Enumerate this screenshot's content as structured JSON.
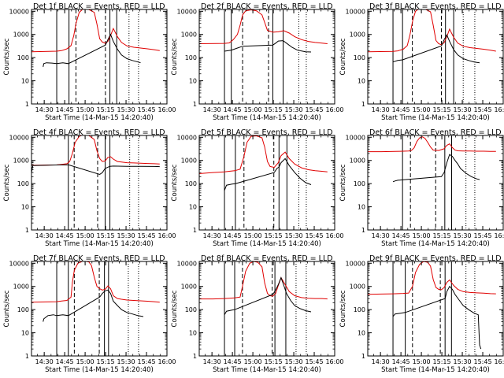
{
  "chart_data": {
    "type": "line",
    "layout": "3x3 grid",
    "y_scale": "log",
    "ylim": [
      1,
      12000
    ],
    "y_ticks": [
      1,
      10,
      100,
      1000,
      10000
    ],
    "y_tick_labels": [
      "1",
      "10",
      "100",
      "1000",
      "10000"
    ],
    "ylabel": "Counts/sec",
    "xlabel": "Start Time (14-Mar-15 14:20:40)",
    "x_units": "minutes after 14:20:40",
    "xlim": [
      0,
      99.33
    ],
    "x_ticks": [
      9.33,
      24.33,
      39.33,
      54.33,
      69.33,
      84.33,
      99.33
    ],
    "x_tick_labels": [
      "14:30",
      "14:45",
      "15:00",
      "15:15",
      "15:30",
      "15:45",
      "16:00"
    ],
    "series_names": [
      "BLACK = Events",
      "RED = LLD"
    ],
    "series_colors": {
      "events": "#000000",
      "lld": "#e00000"
    },
    "panels": [
      {
        "title": "Det 1f BLACK = Events, RED = LLD",
        "solid_lines": [
          18.5,
          27.5,
          57.5,
          62.5
        ],
        "dashed_lines": [
          32.6,
          54.2
        ],
        "dotted_lines": [
          71.5,
          78.5
        ],
        "lld": {
          "x": [
            0,
            18.5,
            22,
            26,
            29,
            31,
            32.6,
            35,
            38,
            42,
            46,
            48,
            50,
            52,
            54,
            56,
            58,
            60,
            63,
            66,
            70,
            75,
            80,
            85,
            90,
            94
          ],
          "y": [
            180,
            190,
            200,
            240,
            330,
            900,
            3000,
            9000,
            13000,
            12000,
            9000,
            2800,
            650,
            470,
            420,
            500,
            900,
            1800,
            800,
            450,
            320,
            280,
            260,
            240,
            220,
            200
          ]
        },
        "events": {
          "x": [
            8.5,
            9,
            11,
            15,
            18.5,
            23,
            27,
            54.2,
            56,
            58,
            60,
            63,
            66,
            70,
            74,
            78,
            80
          ],
          "y": [
            40,
            55,
            60,
            58,
            55,
            60,
            55,
            350,
            600,
            1000,
            500,
            230,
            130,
            90,
            75,
            65,
            60
          ]
        }
      },
      {
        "title": "Det 2f BLACK = Events, RED = LLD",
        "solid_lines": [
          18.5,
          23.5,
          54,
          61.5
        ],
        "dashed_lines": [
          31.8,
          50.8
        ],
        "dotted_lines": [
          73,
          78.5
        ],
        "lld": {
          "x": [
            0,
            18.5,
            22,
            25,
            28,
            30,
            31.8,
            34,
            38,
            42,
            46,
            48,
            50,
            54,
            58,
            62,
            66,
            70,
            75,
            80,
            85,
            90,
            94
          ],
          "y": [
            400,
            410,
            430,
            600,
            1000,
            2500,
            7000,
            10500,
            11500,
            10500,
            7000,
            3300,
            1500,
            1250,
            1300,
            1450,
            1150,
            800,
            600,
            500,
            450,
            420,
            400
          ]
        },
        "events": {
          "x": [
            18.5,
            23.5,
            28,
            31.8,
            54,
            56,
            58,
            61.5,
            64,
            68,
            72,
            78,
            82
          ],
          "y": [
            190,
            210,
            260,
            310,
            350,
            420,
            520,
            540,
            420,
            280,
            210,
            180,
            175
          ]
        }
      },
      {
        "title": "Det 3f BLACK = Events, RED = LLD",
        "solid_lines": [
          18.5,
          25.5,
          57,
          63
        ],
        "dashed_lines": [
          32.7,
          54
        ],
        "dotted_lines": [
          70,
          78.5
        ],
        "lld": {
          "x": [
            0,
            18.5,
            22,
            26,
            29,
            31,
            33,
            35,
            38,
            42,
            46,
            48,
            50,
            52,
            54,
            56,
            58,
            60,
            63,
            66,
            70,
            75,
            80,
            85,
            90,
            94
          ],
          "y": [
            180,
            185,
            195,
            230,
            330,
            1000,
            4000,
            10000,
            13500,
            12500,
            9500,
            2500,
            550,
            400,
            360,
            440,
            800,
            1700,
            750,
            420,
            310,
            270,
            250,
            230,
            210,
            190
          ]
        },
        "events": {
          "x": [
            18.5,
            22,
            25.5,
            54,
            56,
            58,
            60,
            63,
            66,
            70,
            74,
            78,
            82
          ],
          "y": [
            65,
            75,
            80,
            320,
            600,
            950,
            500,
            220,
            130,
            90,
            75,
            65,
            60
          ]
        }
      },
      {
        "title": "Det 4f BLACK = Events, RED = LLD",
        "solid_lines": [
          27,
          54,
          57.5
        ],
        "dashed_lines": [
          31.3,
          48.5
        ],
        "dotted_lines": [
          72,
          78.5
        ],
        "lld": {
          "x": [
            0,
            18.5,
            22,
            26,
            28,
            30,
            32,
            35,
            38,
            42,
            46,
            48,
            50,
            52,
            54,
            56,
            58,
            60,
            63,
            66,
            70,
            75,
            80,
            85,
            90,
            94
          ],
          "y": [
            620,
            640,
            680,
            720,
            900,
            2000,
            6000,
            11000,
            13000,
            12000,
            8000,
            2600,
            1200,
            900,
            950,
            1350,
            1450,
            1150,
            900,
            850,
            800,
            780,
            760,
            740,
            720,
            700
          ]
        },
        "events": {
          "x": [
            0,
            1,
            10,
            20,
            27,
            50,
            52,
            54,
            57.5,
            60,
            70,
            80,
            90,
            94
          ],
          "y": [
            300,
            600,
            620,
            640,
            650,
            250,
            300,
            450,
            560,
            570,
            560,
            560,
            550,
            540
          ]
        }
      },
      {
        "title": "Det 5f BLACK = Events, RED = LLD",
        "solid_lines": [
          18.5,
          26.5,
          58.5,
          64.3
        ],
        "dashed_lines": [
          32.8,
          54.7
        ],
        "dotted_lines": [
          73,
          78.5
        ],
        "lld": {
          "x": [
            0,
            10,
            18.5,
            22,
            26,
            30,
            32.8,
            35,
            38,
            42,
            46,
            48,
            50,
            52,
            55,
            58,
            60,
            63,
            66,
            70,
            75,
            80,
            85,
            90,
            94
          ],
          "y": [
            270,
            300,
            320,
            340,
            360,
            420,
            1500,
            6000,
            11000,
            11500,
            9500,
            3800,
            900,
            550,
            500,
            800,
            1600,
            2300,
            1200,
            700,
            480,
            400,
            360,
            340,
            320
          ]
        },
        "events": {
          "x": [
            18.5,
            20,
            24,
            26.5,
            55,
            57,
            58.5,
            60,
            63,
            66,
            70,
            74,
            78,
            82
          ],
          "y": [
            50,
            85,
            95,
            100,
            300,
            450,
            520,
            800,
            1200,
            600,
            300,
            170,
            110,
            90
          ]
        }
      },
      {
        "title": "Det 6f BLACK = Events, RED = LLD",
        "solid_lines": [
          25.5,
          56.5,
          61.5
        ],
        "dashed_lines": [
          31.3,
          49.8
        ],
        "dotted_lines": [
          72,
          78.5
        ],
        "lld": {
          "x": [
            0,
            10,
            20,
            26,
            30,
            32,
            34,
            36,
            38,
            40,
            42,
            44,
            46,
            48,
            52,
            56,
            58,
            60,
            62,
            64,
            66,
            70,
            75,
            80,
            85,
            90,
            94
          ],
          "y": [
            2400,
            2400,
            2450,
            2500,
            2550,
            2700,
            3500,
            6500,
            9500,
            10500,
            9000,
            6000,
            3800,
            2800,
            2700,
            3200,
            4500,
            5200,
            3600,
            2800,
            2600,
            2550,
            2550,
            2500,
            2500,
            2450,
            2450
          ]
        },
        "events": {
          "x": [
            18.5,
            20,
            22,
            25.5,
            54,
            56,
            58,
            60,
            62,
            64,
            66,
            68,
            72,
            76,
            80,
            82
          ],
          "y": [
            120,
            130,
            140,
            145,
            200,
            300,
            800,
            1800,
            1500,
            1000,
            700,
            450,
            280,
            200,
            160,
            150
          ]
        }
      },
      {
        "title": "Det 7f BLACK = Events, RED = LLD",
        "solid_lines": [
          18.5,
          27,
          53.5,
          56.5
        ],
        "dashed_lines": [
          31.4,
          49.7
        ],
        "dotted_lines": [
          71,
          78.5
        ],
        "lld": {
          "x": [
            0,
            10,
            18.5,
            22,
            26,
            29,
            30,
            31.4,
            34,
            38,
            42,
            44,
            46,
            48,
            50,
            52,
            54,
            56,
            58,
            60,
            63,
            66,
            70,
            75,
            80,
            85,
            90,
            94
          ],
          "y": [
            210,
            215,
            220,
            235,
            250,
            350,
            1500,
            5000,
            10000,
            12500,
            11500,
            8000,
            2500,
            1000,
            800,
            700,
            750,
            1050,
            800,
            400,
            300,
            280,
            260,
            250,
            240,
            230,
            220,
            210
          ]
        },
        "events": {
          "x": [
            8.5,
            9,
            12,
            16,
            18.5,
            23,
            27,
            50,
            52,
            54,
            56,
            58,
            60,
            63,
            66,
            70,
            74,
            78,
            82
          ],
          "y": [
            30,
            40,
            55,
            60,
            55,
            60,
            55,
            350,
            500,
            650,
            700,
            500,
            230,
            150,
            100,
            75,
            65,
            55,
            50
          ]
        }
      },
      {
        "title": "Det 8f BLACK = Events, RED = LLD",
        "solid_lines": [
          18.5,
          26,
          55.5,
          63.5
        ],
        "dashed_lines": [
          31.7,
          53.5
        ],
        "dotted_lines": [
          71,
          78.5
        ],
        "lld": {
          "x": [
            0,
            10,
            18.5,
            22,
            26,
            30,
            31.7,
            34,
            37,
            40,
            43,
            46,
            48,
            50,
            52,
            54,
            56,
            58,
            60,
            63,
            66,
            70,
            75,
            80,
            85,
            90,
            94
          ],
          "y": [
            290,
            290,
            300,
            310,
            320,
            350,
            1000,
            4500,
            10000,
            12000,
            11000,
            7000,
            1400,
            500,
            400,
            380,
            500,
            1100,
            2400,
            1200,
            600,
            400,
            330,
            310,
            300,
            300,
            290
          ]
        },
        "events": {
          "x": [
            18.5,
            20,
            24,
            26,
            54,
            56,
            58,
            60,
            62,
            64,
            67,
            70,
            74,
            78,
            82
          ],
          "y": [
            60,
            85,
            95,
            100,
            450,
            700,
            1200,
            2400,
            1100,
            500,
            250,
            150,
            110,
            90,
            80
          ]
        }
      },
      {
        "title": "Det 9f BLACK = Events, RED = LLD",
        "solid_lines": [
          18.5,
          27.5,
          56.7,
          61.4
        ],
        "dashed_lines": [
          32.8,
          53.2
        ],
        "dotted_lines": [
          72,
          78.5
        ],
        "lld": {
          "x": [
            0,
            10,
            18.5,
            22,
            26,
            30,
            32.8,
            35,
            38,
            41,
            44,
            46,
            48,
            50,
            52,
            54,
            56,
            58,
            60,
            63,
            66,
            70,
            75,
            80,
            85,
            90,
            94
          ],
          "y": [
            460,
            470,
            480,
            490,
            500,
            520,
            1000,
            4000,
            9000,
            12000,
            11000,
            7500,
            2000,
            900,
            750,
            720,
            900,
            1500,
            1900,
            1100,
            750,
            600,
            550,
            530,
            510,
            490,
            480
          ]
        },
        "events": {
          "x": [
            18.5,
            20,
            24,
            27.5,
            56.7,
            58,
            60,
            62,
            64,
            67,
            70,
            74,
            78,
            81,
            82,
            83
          ],
          "y": [
            50,
            65,
            70,
            75,
            300,
            600,
            1000,
            750,
            450,
            260,
            150,
            100,
            70,
            60,
            3,
            2
          ]
        }
      }
    ]
  }
}
